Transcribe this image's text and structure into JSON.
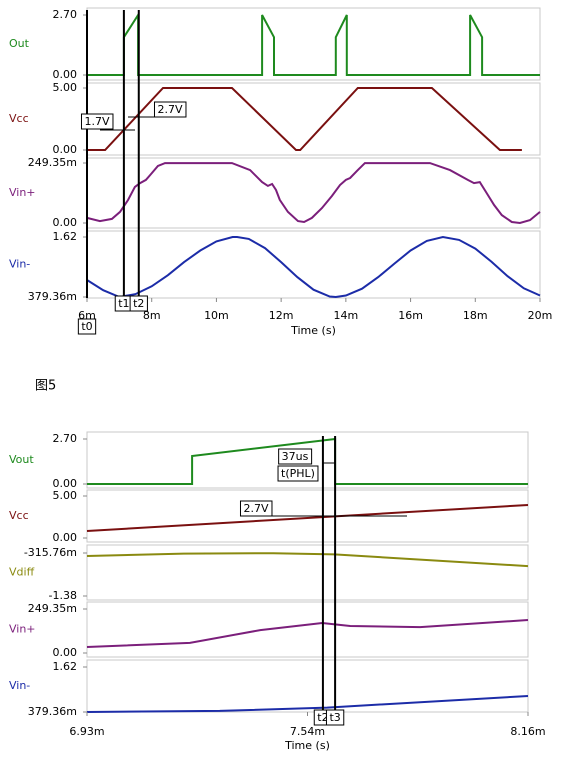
{
  "chart_data": [
    {
      "type": "line",
      "xlabel": "Time (s)",
      "caption": "图5",
      "xlim": [
        6,
        20
      ],
      "xticks": [
        {
          "value": 6,
          "label": "6m"
        },
        {
          "value": 8,
          "label": "8m"
        },
        {
          "value": 10,
          "label": "10m"
        },
        {
          "value": 12,
          "label": "12m"
        },
        {
          "value": 14,
          "label": "14m"
        },
        {
          "value": 16,
          "label": "16m"
        },
        {
          "value": 18,
          "label": "18m"
        },
        {
          "value": 20,
          "label": "20m"
        }
      ],
      "panels": [
        {
          "name": "Out",
          "color": "#1e8a1e",
          "ylim": [
            0,
            2.7
          ],
          "yticks": [
            {
              "value": 0,
              "label": "0.00"
            },
            {
              "value": 2.7,
              "label": "2.70"
            }
          ],
          "x": [
            6,
            7.14,
            7.14,
            7.58,
            7.58,
            11.41,
            11.41,
            11.78,
            11.78,
            13.69,
            13.69,
            14.03,
            14.03,
            17.84,
            17.84,
            18.21,
            18.21,
            20
          ],
          "values": [
            0,
            0,
            1.7,
            2.7,
            0,
            0,
            2.7,
            1.7,
            0,
            0,
            1.7,
            2.7,
            0,
            0,
            2.7,
            1.7,
            0,
            0
          ]
        },
        {
          "name": "Vcc",
          "color": "#7a1010",
          "ylim": [
            0,
            5
          ],
          "yticks": [
            {
              "value": 0,
              "label": "0.00"
            },
            {
              "value": 5,
              "label": "5.00"
            }
          ],
          "x": [
            6,
            6.56,
            8.35,
            10.48,
            12.46,
            12.59,
            14.37,
            16.66,
            18.76,
            19.44
          ],
          "values": [
            0,
            0,
            5,
            5,
            0,
            0,
            5,
            5,
            0,
            0
          ]
        },
        {
          "name": "Vin+",
          "color": "#7b1f7b",
          "ylim": [
            0,
            0.24935
          ],
          "yticks": [
            {
              "value": 0,
              "label": "0.00"
            },
            {
              "value": 0.24935,
              "label": "249.35m"
            }
          ],
          "x": [
            6,
            6.4,
            6.77,
            7.02,
            7.27,
            7.48,
            7.64,
            7.82,
            7.95,
            8.19,
            8.41,
            10.48,
            11.04,
            11.41,
            11.59,
            11.72,
            11.84,
            11.96,
            12.21,
            12.52,
            12.71,
            12.95,
            13.26,
            13.57,
            13.82,
            14,
            14.13,
            14.37,
            14.59,
            16.6,
            17.22,
            17.77,
            17.96,
            18.14,
            18.33,
            18.58,
            18.82,
            19.13,
            19.38,
            19.69,
            20
          ],
          "values": [
            0.021,
            0.008,
            0.017,
            0.046,
            0.096,
            0.15,
            0.166,
            0.179,
            0.199,
            0.237,
            0.249,
            0.249,
            0.22,
            0.17,
            0.154,
            0.162,
            0.137,
            0.096,
            0.046,
            0.008,
            0.004,
            0.021,
            0.062,
            0.112,
            0.158,
            0.179,
            0.187,
            0.22,
            0.249,
            0.249,
            0.22,
            0.179,
            0.166,
            0.17,
            0.129,
            0.075,
            0.033,
            0.004,
            0,
            0.012,
            0.046
          ]
        },
        {
          "name": "Vin-",
          "color": "#1c2ca8",
          "ylim": [
            0.37936,
            1.62
          ],
          "yticks": [
            {
              "value": 0.37936,
              "label": "379.36m"
            },
            {
              "value": 1.62,
              "label": "1.62"
            }
          ],
          "x": [
            6,
            6.5,
            7,
            7.5,
            8,
            8.5,
            9,
            9.5,
            10,
            10.5,
            10.64,
            11,
            11.5,
            12,
            12.5,
            13,
            13.5,
            13.69,
            14,
            14.5,
            15,
            15.5,
            16,
            16.5,
            17,
            17.5,
            18,
            18.5,
            19,
            19.5,
            20
          ],
          "values": [
            0.73,
            0.52,
            0.38,
            0.44,
            0.6,
            0.83,
            1.1,
            1.34,
            1.53,
            1.62,
            1.62,
            1.58,
            1.39,
            1.1,
            0.79,
            0.53,
            0.39,
            0.38,
            0.41,
            0.55,
            0.79,
            1.07,
            1.34,
            1.54,
            1.62,
            1.56,
            1.38,
            1.11,
            0.81,
            0.56,
            0.41
          ]
        }
      ],
      "cursors": [
        {
          "label": "t0",
          "x": 6
        },
        {
          "label": "t1",
          "x": 7.14
        },
        {
          "label": "t2",
          "x": 7.6
        }
      ],
      "annotations": [
        "1.7V",
        "2.7V"
      ]
    },
    {
      "type": "line",
      "xlabel": "Time (s)",
      "xlim": [
        6.93,
        8.16
      ],
      "xticks": [
        {
          "value": 6.93,
          "label": "6.93m"
        },
        {
          "value": 7.545,
          "label": "7.54m"
        },
        {
          "value": 8.16,
          "label": "8.16m"
        }
      ],
      "panels": [
        {
          "name": "Vout",
          "color": "#1e8a1e",
          "ylim": [
            0,
            2.7
          ],
          "yticks": [
            {
              "value": 0,
              "label": "0.00"
            },
            {
              "value": 2.7,
              "label": "2.70"
            }
          ],
          "x": [
            6.93,
            7.223,
            7.223,
            7.622,
            7.622,
            8.16
          ],
          "values": [
            0,
            0,
            1.68,
            2.7,
            0,
            0
          ]
        },
        {
          "name": "Vcc",
          "color": "#7a1010",
          "ylim": [
            0,
            5
          ],
          "yticks": [
            {
              "value": 0,
              "label": "0.00"
            },
            {
              "value": 5,
              "label": "5.00"
            }
          ],
          "x": [
            6.93,
            8.16
          ],
          "values": [
            0.83,
            3.93
          ]
        },
        {
          "name": "Vdiff",
          "color": "#8a8a10",
          "ylim": [
            -1.38,
            -0.31576
          ],
          "yticks": [
            {
              "value": -1.38,
              "label": "-1.38"
            },
            {
              "value": -0.31576,
              "label": "-315.76m"
            }
          ],
          "x": [
            6.93,
            7.2,
            7.45,
            7.62,
            8.16
          ],
          "values": [
            -0.39,
            -0.33,
            -0.32,
            -0.35,
            -0.64
          ]
        },
        {
          "name": "Vin+",
          "color": "#7b1f7b",
          "ylim": [
            0,
            0.24935
          ],
          "yticks": [
            {
              "value": 0,
              "label": "0.00"
            },
            {
              "value": 0.24935,
              "label": "249.35m"
            }
          ],
          "x": [
            6.93,
            7.217,
            7.413,
            7.586,
            7.664,
            7.859,
            8.16
          ],
          "values": [
            0.034,
            0.057,
            0.13,
            0.17,
            0.153,
            0.147,
            0.187
          ]
        },
        {
          "name": "Vin-",
          "color": "#1c2ca8",
          "ylim": [
            0.37936,
            1.62
          ],
          "yticks": [
            {
              "value": 0.37936,
              "label": "379.36m"
            },
            {
              "value": 1.62,
              "label": "1.62"
            }
          ],
          "x": [
            6.93,
            7.3,
            7.6,
            8.16
          ],
          "values": [
            0.38,
            0.41,
            0.5,
            0.82
          ]
        }
      ],
      "cursors": [
        {
          "label": "t2",
          "x": 7.588
        },
        {
          "label": "t3",
          "x": 7.622
        }
      ],
      "annotations": [
        "37us",
        "t(PHL)",
        "2.7V"
      ]
    }
  ]
}
